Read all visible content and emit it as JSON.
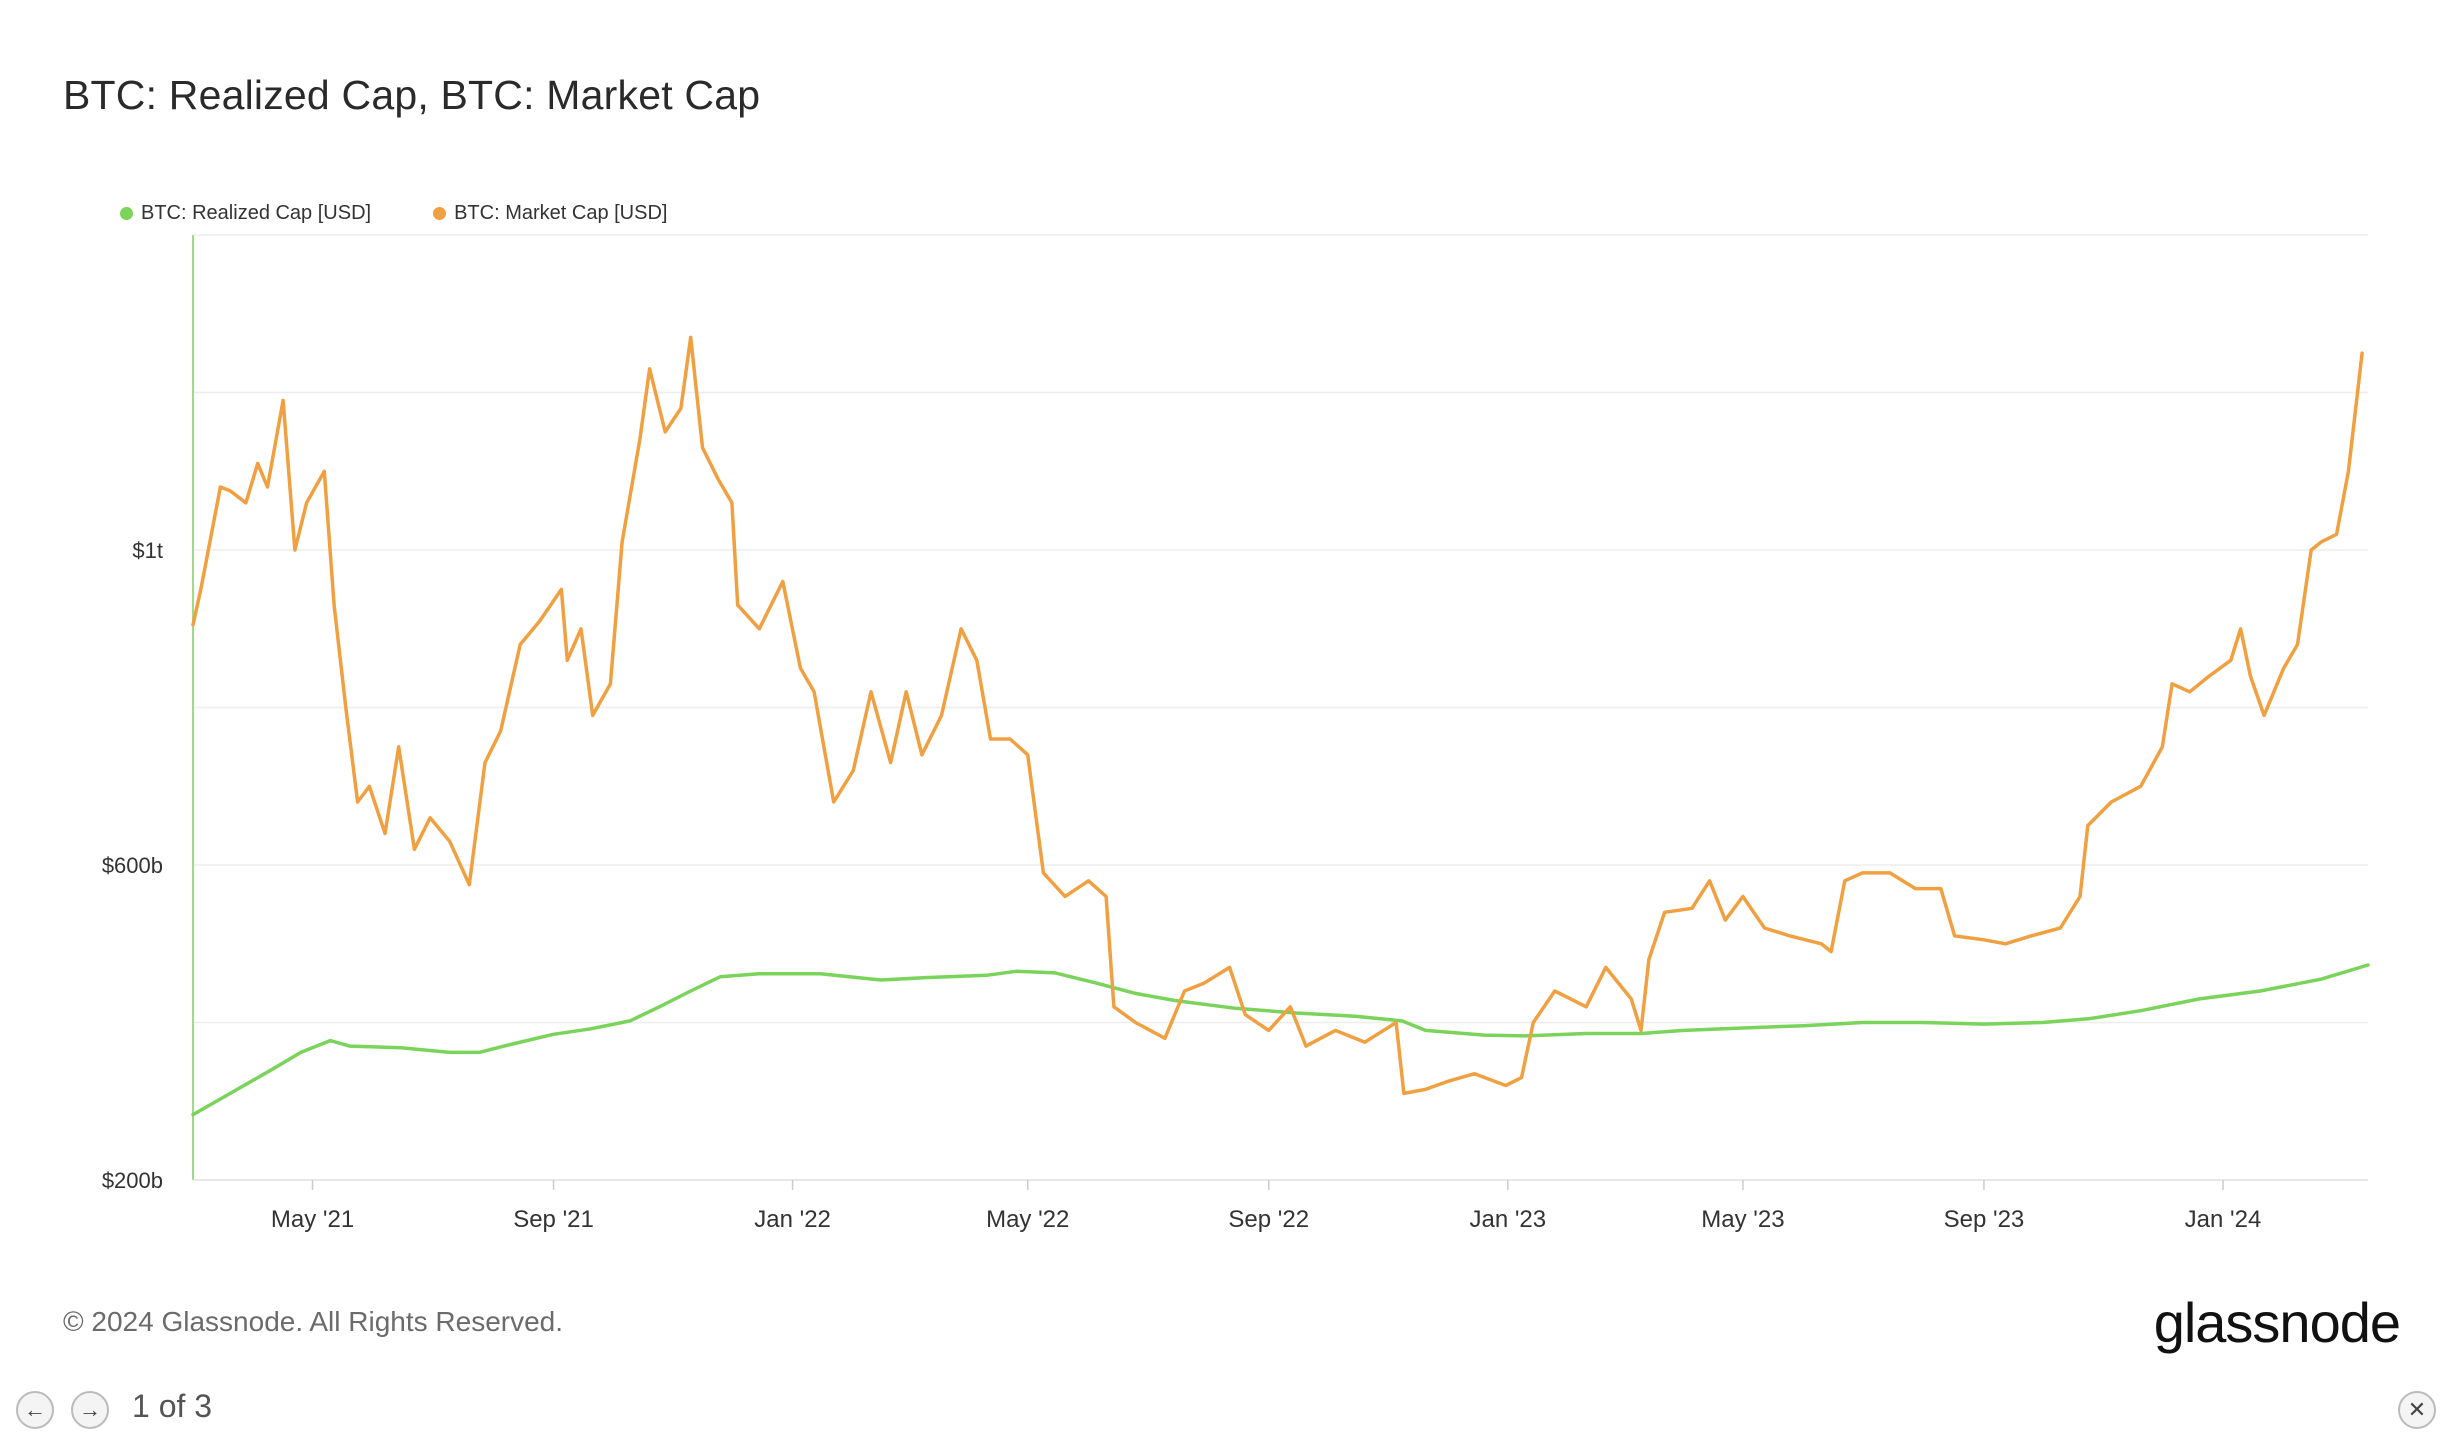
{
  "title": "BTC: Realized Cap, BTC: Market Cap",
  "legend": [
    {
      "label": "BTC: Realized Cap [USD]",
      "color": "#7ad35a"
    },
    {
      "label": "BTC: Market Cap [USD]",
      "color": "#f0a040"
    }
  ],
  "footer": "© 2024 Glassnode. All Rights Reserved.",
  "brand": "glassnode",
  "pager": {
    "text": "1 of 3",
    "prev_icon": "arrow-left-icon",
    "next_icon": "arrow-right-icon",
    "close_icon": "close-icon"
  },
  "chart_data": {
    "type": "line",
    "x_ticks": [
      "May '21",
      "Sep '21",
      "Jan '22",
      "May '22",
      "Sep '22",
      "Jan '23",
      "May '23",
      "Sep '23",
      "Jan '24"
    ],
    "x_tick_dates": [
      "2021-05-01",
      "2021-09-01",
      "2022-01-01",
      "2022-05-01",
      "2022-09-01",
      "2023-01-01",
      "2023-05-01",
      "2023-09-01",
      "2024-01-01"
    ],
    "x_range": [
      "2021-03-01",
      "2024-03-15"
    ],
    "y_ticks": [
      {
        "label": "$200b",
        "value": 200
      },
      {
        "label": "$600b",
        "value": 600
      },
      {
        "label": "$1t",
        "value": 1000
      }
    ],
    "y_unit": "billions USD",
    "y_range": [
      200,
      1400
    ],
    "grid": true,
    "legend_position": "top-left",
    "series": [
      {
        "name": "BTC: Realized Cap [USD]",
        "color": "#7ad35a",
        "points": [
          [
            "2021-03-01",
            283
          ],
          [
            "2021-03-20",
            310
          ],
          [
            "2021-04-10",
            340
          ],
          [
            "2021-04-25",
            362
          ],
          [
            "2021-05-10",
            377
          ],
          [
            "2021-05-20",
            370
          ],
          [
            "2021-06-15",
            368
          ],
          [
            "2021-07-10",
            362
          ],
          [
            "2021-07-25",
            362
          ],
          [
            "2021-08-10",
            372
          ],
          [
            "2021-09-01",
            385
          ],
          [
            "2021-09-20",
            392
          ],
          [
            "2021-10-10",
            402
          ],
          [
            "2021-10-25",
            420
          ],
          [
            "2021-11-10",
            440
          ],
          [
            "2021-11-25",
            458
          ],
          [
            "2021-12-15",
            462
          ],
          [
            "2022-01-15",
            462
          ],
          [
            "2022-02-15",
            454
          ],
          [
            "2022-03-10",
            457
          ],
          [
            "2022-04-10",
            460
          ],
          [
            "2022-04-25",
            465
          ],
          [
            "2022-05-15",
            463
          ],
          [
            "2022-06-05",
            450
          ],
          [
            "2022-06-25",
            437
          ],
          [
            "2022-07-15",
            428
          ],
          [
            "2022-08-15",
            418
          ],
          [
            "2022-09-15",
            412
          ],
          [
            "2022-10-15",
            408
          ],
          [
            "2022-11-08",
            402
          ],
          [
            "2022-11-20",
            390
          ],
          [
            "2022-12-20",
            384
          ],
          [
            "2023-01-10",
            383
          ],
          [
            "2023-02-10",
            386
          ],
          [
            "2023-03-10",
            386
          ],
          [
            "2023-04-01",
            390
          ],
          [
            "2023-05-01",
            393
          ],
          [
            "2023-06-01",
            396
          ],
          [
            "2023-07-01",
            400
          ],
          [
            "2023-08-01",
            400
          ],
          [
            "2023-09-01",
            398
          ],
          [
            "2023-10-01",
            400
          ],
          [
            "2023-10-25",
            405
          ],
          [
            "2023-11-20",
            415
          ],
          [
            "2023-12-20",
            430
          ],
          [
            "2024-01-20",
            440
          ],
          [
            "2024-02-20",
            455
          ],
          [
            "2024-03-15",
            473
          ]
        ]
      },
      {
        "name": "BTC: Market Cap [USD]",
        "color": "#f0a040",
        "points": [
          [
            "2021-03-01",
            905
          ],
          [
            "2021-03-05",
            950
          ],
          [
            "2021-03-15",
            1080
          ],
          [
            "2021-03-20",
            1075
          ],
          [
            "2021-03-28",
            1060
          ],
          [
            "2021-04-03",
            1110
          ],
          [
            "2021-04-08",
            1080
          ],
          [
            "2021-04-16",
            1190
          ],
          [
            "2021-04-22",
            1000
          ],
          [
            "2021-04-28",
            1060
          ],
          [
            "2021-05-07",
            1100
          ],
          [
            "2021-05-12",
            930
          ],
          [
            "2021-05-18",
            800
          ],
          [
            "2021-05-24",
            680
          ],
          [
            "2021-05-30",
            700
          ],
          [
            "2021-06-07",
            640
          ],
          [
            "2021-06-14",
            750
          ],
          [
            "2021-06-22",
            620
          ],
          [
            "2021-06-30",
            660
          ],
          [
            "2021-07-10",
            630
          ],
          [
            "2021-07-20",
            575
          ],
          [
            "2021-07-28",
            730
          ],
          [
            "2021-08-05",
            770
          ],
          [
            "2021-08-15",
            880
          ],
          [
            "2021-08-25",
            910
          ],
          [
            "2021-09-05",
            950
          ],
          [
            "2021-09-08",
            860
          ],
          [
            "2021-09-15",
            900
          ],
          [
            "2021-09-21",
            790
          ],
          [
            "2021-09-30",
            830
          ],
          [
            "2021-10-06",
            1010
          ],
          [
            "2021-10-15",
            1140
          ],
          [
            "2021-10-20",
            1230
          ],
          [
            "2021-10-28",
            1150
          ],
          [
            "2021-11-05",
            1180
          ],
          [
            "2021-11-10",
            1270
          ],
          [
            "2021-11-16",
            1130
          ],
          [
            "2021-11-24",
            1090
          ],
          [
            "2021-12-01",
            1060
          ],
          [
            "2021-12-04",
            930
          ],
          [
            "2021-12-15",
            900
          ],
          [
            "2021-12-27",
            960
          ],
          [
            "2022-01-05",
            850
          ],
          [
            "2022-01-12",
            820
          ],
          [
            "2022-01-22",
            680
          ],
          [
            "2022-02-01",
            720
          ],
          [
            "2022-02-10",
            820
          ],
          [
            "2022-02-20",
            730
          ],
          [
            "2022-02-28",
            820
          ],
          [
            "2022-03-08",
            740
          ],
          [
            "2022-03-18",
            790
          ],
          [
            "2022-03-28",
            900
          ],
          [
            "2022-04-05",
            860
          ],
          [
            "2022-04-12",
            760
          ],
          [
            "2022-04-22",
            760
          ],
          [
            "2022-05-01",
            740
          ],
          [
            "2022-05-09",
            590
          ],
          [
            "2022-05-20",
            560
          ],
          [
            "2022-06-01",
            580
          ],
          [
            "2022-06-10",
            560
          ],
          [
            "2022-06-14",
            420
          ],
          [
            "2022-06-25",
            400
          ],
          [
            "2022-07-10",
            380
          ],
          [
            "2022-07-20",
            440
          ],
          [
            "2022-07-30",
            450
          ],
          [
            "2022-08-12",
            470
          ],
          [
            "2022-08-20",
            410
          ],
          [
            "2022-09-01",
            390
          ],
          [
            "2022-09-12",
            420
          ],
          [
            "2022-09-20",
            370
          ],
          [
            "2022-10-05",
            390
          ],
          [
            "2022-10-20",
            375
          ],
          [
            "2022-11-05",
            400
          ],
          [
            "2022-11-09",
            310
          ],
          [
            "2022-11-20",
            315
          ],
          [
            "2022-12-01",
            325
          ],
          [
            "2022-12-15",
            335
          ],
          [
            "2022-12-31",
            320
          ],
          [
            "2023-01-08",
            330
          ],
          [
            "2023-01-14",
            400
          ],
          [
            "2023-01-25",
            440
          ],
          [
            "2023-02-10",
            420
          ],
          [
            "2023-02-20",
            470
          ],
          [
            "2023-03-05",
            430
          ],
          [
            "2023-03-10",
            390
          ],
          [
            "2023-03-14",
            480
          ],
          [
            "2023-03-22",
            540
          ],
          [
            "2023-04-05",
            545
          ],
          [
            "2023-04-14",
            580
          ],
          [
            "2023-04-22",
            530
          ],
          [
            "2023-05-01",
            560
          ],
          [
            "2023-05-12",
            520
          ],
          [
            "2023-05-25",
            510
          ],
          [
            "2023-06-10",
            500
          ],
          [
            "2023-06-15",
            490
          ],
          [
            "2023-06-22",
            580
          ],
          [
            "2023-07-01",
            590
          ],
          [
            "2023-07-15",
            590
          ],
          [
            "2023-07-28",
            570
          ],
          [
            "2023-08-10",
            570
          ],
          [
            "2023-08-17",
            510
          ],
          [
            "2023-09-01",
            505
          ],
          [
            "2023-09-12",
            500
          ],
          [
            "2023-09-25",
            510
          ],
          [
            "2023-10-10",
            520
          ],
          [
            "2023-10-20",
            560
          ],
          [
            "2023-10-24",
            650
          ],
          [
            "2023-11-05",
            680
          ],
          [
            "2023-11-20",
            700
          ],
          [
            "2023-12-01",
            750
          ],
          [
            "2023-12-06",
            830
          ],
          [
            "2023-12-15",
            820
          ],
          [
            "2023-12-25",
            840
          ],
          [
            "2024-01-05",
            860
          ],
          [
            "2024-01-10",
            900
          ],
          [
            "2024-01-15",
            840
          ],
          [
            "2024-01-22",
            790
          ],
          [
            "2024-02-01",
            850
          ],
          [
            "2024-02-08",
            880
          ],
          [
            "2024-02-15",
            1000
          ],
          [
            "2024-02-20",
            1010
          ],
          [
            "2024-02-28",
            1020
          ],
          [
            "2024-03-05",
            1100
          ],
          [
            "2024-03-12",
            1250
          ]
        ]
      }
    ]
  }
}
